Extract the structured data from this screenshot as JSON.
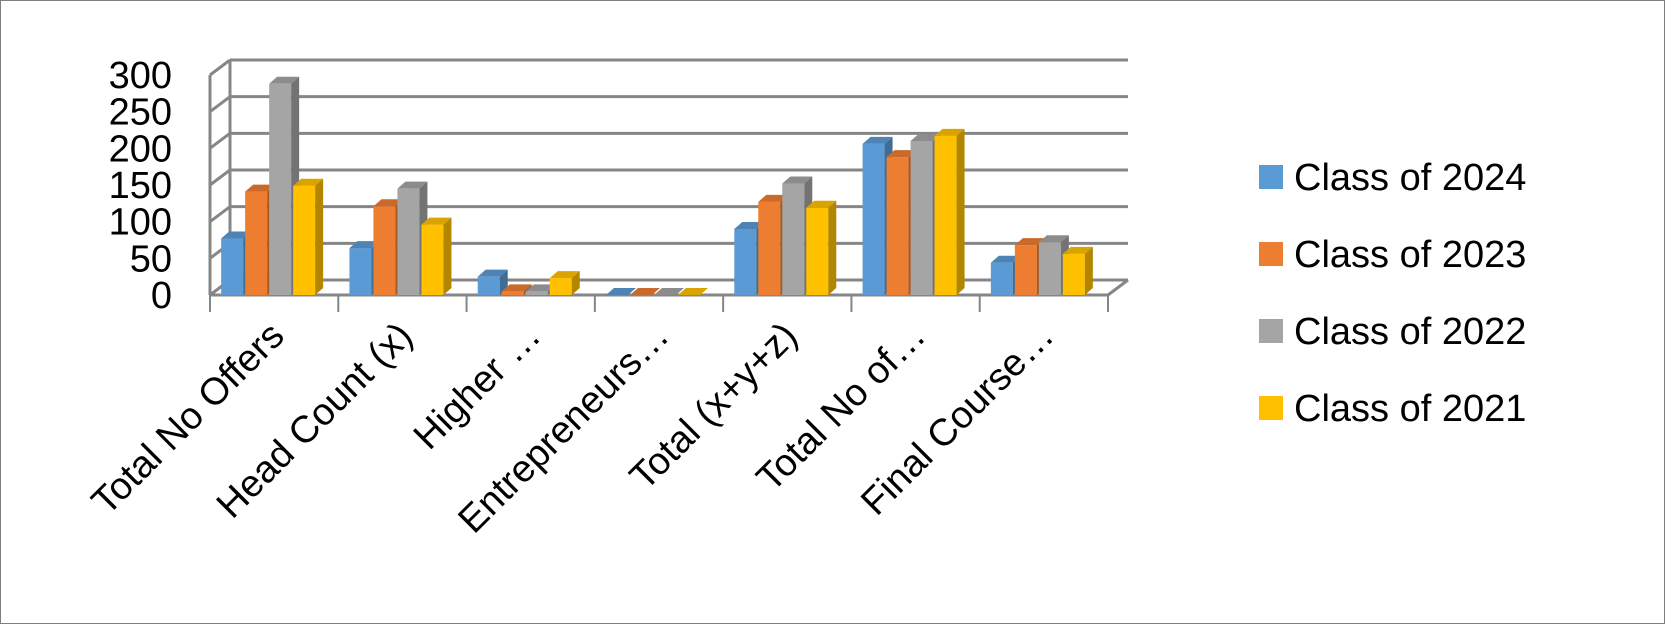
{
  "chart_data": {
    "type": "bar",
    "title": "",
    "xlabel": "",
    "ylabel": "",
    "ylim": [
      0,
      300
    ],
    "yticks": [
      0,
      50,
      100,
      150,
      200,
      250,
      300
    ],
    "grid": true,
    "legend_position": "right",
    "categories": [
      "Total No Offers",
      "Head Count (x)",
      "Higher …",
      "Entrepreneurs…",
      "Total (x+y+z)",
      "Total No of…",
      "Final Course…"
    ],
    "series": [
      {
        "name": "Class of 2024",
        "color": "#5b9bd5",
        "values": [
          77,
          64,
          25,
          0,
          90,
          206,
          44
        ]
      },
      {
        "name": "Class of 2023",
        "color": "#ed7d31",
        "values": [
          141,
          121,
          5,
          0,
          127,
          188,
          68
        ]
      },
      {
        "name": "Class of 2022",
        "color": "#a5a5a5",
        "values": [
          288,
          145,
          5,
          0,
          152,
          210,
          72
        ]
      },
      {
        "name": "Class of 2021",
        "color": "#ffc000",
        "values": [
          149,
          96,
          23,
          0,
          119,
          217,
          56
        ]
      }
    ]
  }
}
